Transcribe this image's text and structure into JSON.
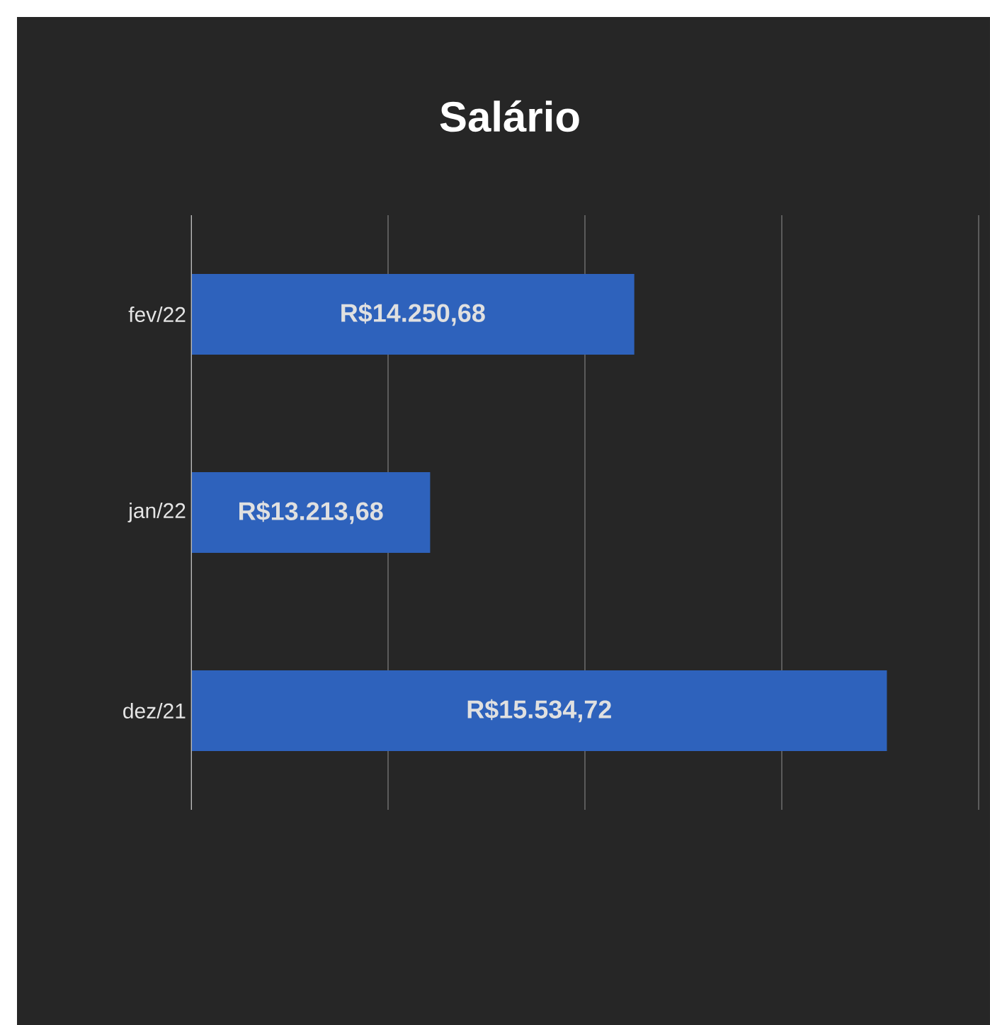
{
  "chart_data": {
    "type": "bar",
    "orientation": "horizontal",
    "title": "Salário",
    "categories": [
      "fev/22",
      "jan/22",
      "dez/21"
    ],
    "values": [
      14250.68,
      13213.68,
      15534.72
    ],
    "value_labels": [
      "R$14.250,68",
      "R$13.213,68",
      "R$15.534,72"
    ],
    "color": "#2e62bc",
    "xlim": [
      12000,
      16000
    ],
    "xticks": [
      {
        "value": 12000,
        "label": null
      },
      {
        "value": 13000,
        "label": null
      },
      {
        "value": 14000,
        "label": null
      },
      {
        "value": 15000,
        "label": null
      },
      {
        "value": 16000,
        "label": null
      }
    ],
    "grid": "x",
    "tick_labels": "y"
  }
}
